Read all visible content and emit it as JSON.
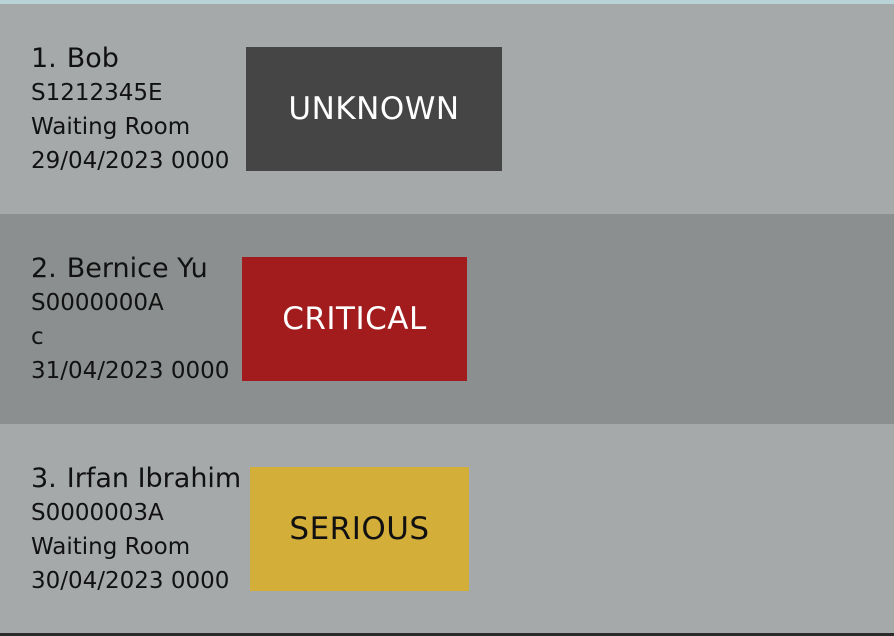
{
  "patients": [
    {
      "index": "1.",
      "name": "Bob",
      "nric": "S1212345E",
      "location": "Waiting Room",
      "datetime": "29/04/2023 0000",
      "status": "UNKNOWN",
      "status_bg": "#454545",
      "status_fg": "#ffffff"
    },
    {
      "index": "2.",
      "name": "Bernice Yu",
      "nric": "S0000000A",
      "location": "c",
      "datetime": "31/04/2023 0000",
      "status": "CRITICAL",
      "status_bg": "#a21c1e",
      "status_fg": "#ffffff"
    },
    {
      "index": "3.",
      "name": "Irfan Ibrahim",
      "nric": "S0000003A",
      "location": "Waiting Room",
      "datetime": "30/04/2023 0000",
      "status": "SERIOUS",
      "status_bg": "#d3ae39",
      "status_fg": "#111111"
    }
  ]
}
